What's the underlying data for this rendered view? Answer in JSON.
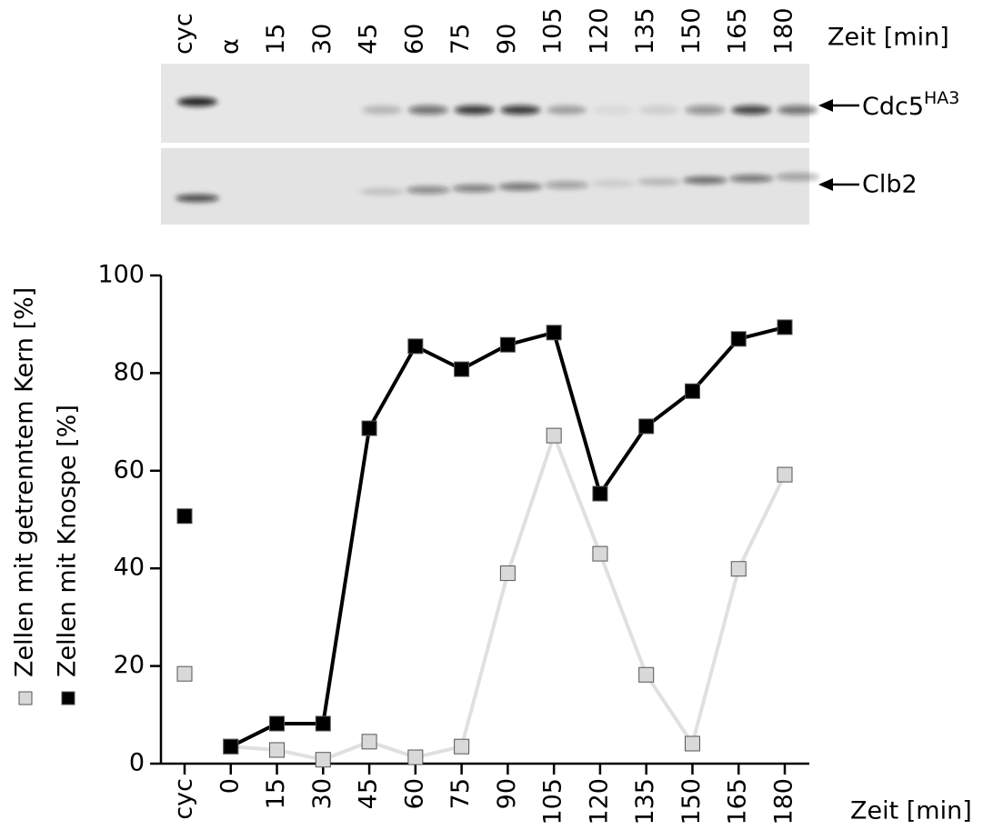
{
  "blot": {
    "lanes": [
      "cyc",
      "α",
      "15",
      "30",
      "45",
      "60",
      "75",
      "90",
      "105",
      "120",
      "135",
      "150",
      "165",
      "180"
    ],
    "axis_label": "Zeit [min]",
    "bands": [
      {
        "name": "Cdc5",
        "superscript": "HA3"
      },
      {
        "name": "Clb2"
      }
    ]
  },
  "chart_data": {
    "type": "line",
    "categories": [
      "cyc",
      "0",
      "15",
      "30",
      "45",
      "60",
      "75",
      "90",
      "105",
      "120",
      "135",
      "150",
      "165",
      "180"
    ],
    "x_label": "Zeit [min]",
    "series": [
      {
        "name": "Zellen mit getrenntem Kern [%]",
        "color": "#d9d9d9",
        "line_color": "#e0e0e0",
        "values": [
          18.4,
          3.5,
          2.8,
          0.8,
          4.5,
          1.3,
          3.5,
          39,
          67.2,
          43,
          18.2,
          4.1,
          39.9,
          59.2
        ]
      },
      {
        "name": "Zellen mit Knospe [%]",
        "color": "#000000",
        "line_color": "#000000",
        "values": [
          50.7,
          3.5,
          8.2,
          8.2,
          68.7,
          85.5,
          80.8,
          85.8,
          88.3,
          55.3,
          69.1,
          76.3,
          87,
          89.4
        ]
      }
    ],
    "ylim": [
      0,
      100
    ],
    "yticks": [
      0,
      20,
      40,
      60,
      80,
      100
    ]
  }
}
